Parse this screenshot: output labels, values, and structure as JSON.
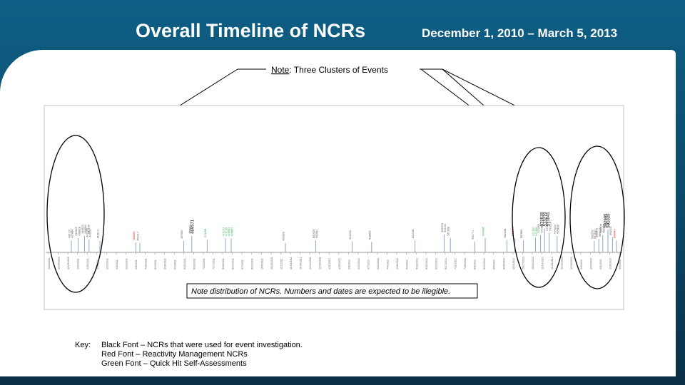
{
  "header": {
    "title": "Overall Timeline of NCRs",
    "date_range": "December 1, 2010 – March 5, 2013"
  },
  "note": {
    "prefix": "Note",
    "text": ":  Three Clusters of Events"
  },
  "illegible_note": "Note distribution of NCRs. Numbers and dates are expected to be illegible.",
  "key": {
    "label": "Key:",
    "lines": [
      "Black Font – NCRs that were used for event investigation.",
      "Red Font – Reactivity Management NCRs",
      "Green Font – Quick Hit Self-Assessments"
    ]
  },
  "colors": {
    "black_ncr": "#555555",
    "red_ncr": "#e02020",
    "green_ncr": "#2fae4a",
    "marker": "#8aa6c6"
  },
  "chart_data": {
    "type": "timeline",
    "x_domain": [
      0,
      100
    ],
    "ticks": [
      "12/1/2010",
      "12/15/2010",
      "12/29/2010",
      "1/12/2011",
      "1/26/2011",
      "2/9/2011",
      "2/23/2011",
      "3/9/2011",
      "3/23/2011",
      "4/6/2011",
      "4/20/2011",
      "5/4/2011",
      "5/18/2011",
      "6/1/2011",
      "6/15/2011",
      "6/29/2011",
      "7/13/2011",
      "7/27/2011",
      "8/10/2011",
      "8/24/2011",
      "9/7/2011",
      "9/21/2011",
      "10/5/2011",
      "10/19/2011",
      "11/2/2011",
      "11/16/2011",
      "11/30/2011",
      "12/14/2011",
      "12/28/2011",
      "1/11/2012",
      "1/25/2012",
      "2/8/2012",
      "2/22/2012",
      "3/7/2012",
      "3/21/2012",
      "4/4/2012",
      "4/18/2012",
      "5/2/2012",
      "5/16/2012",
      "5/30/2012",
      "6/13/2012",
      "6/27/2012",
      "7/11/2012",
      "7/25/2012",
      "8/8/2012",
      "8/22/2012",
      "9/5/2012",
      "9/19/2012",
      "10/3/2012",
      "10/17/2012",
      "10/31/2012",
      "11/14/2012",
      "11/28/2012",
      "12/12/2012",
      "12/26/2012",
      "1/9/2013",
      "1/23/2013",
      "2/6/2013",
      "2/20/2013",
      "3/6/2013"
    ],
    "events": [
      {
        "x": 4.0,
        "h": 48,
        "color": "black",
        "labels": [
          "439110",
          "437886"
        ]
      },
      {
        "x": 5.2,
        "h": 58,
        "color": "black",
        "labels": [
          "440629",
          "438828"
        ]
      },
      {
        "x": 6.3,
        "h": 66,
        "color": "black",
        "labels": [
          "440623",
          "439654",
          "441739"
        ]
      },
      {
        "x": 7.1,
        "h": 52,
        "color": "black",
        "labels": [
          "441265",
          "441817"
        ]
      },
      {
        "x": 9.0,
        "h": 46,
        "color": "black",
        "labels": [
          "444513"
        ]
      },
      {
        "x": 15.3,
        "h": 40,
        "color": "red",
        "labels": [
          "453081"
        ]
      },
      {
        "x": 16.0,
        "h": 38,
        "color": "black",
        "labels": [
          "454217"
        ]
      },
      {
        "x": 23.7,
        "h": 46,
        "color": "black",
        "labels": [
          "467587"
        ]
      },
      {
        "x": 25.1,
        "h": 66,
        "color": "black",
        "labels": [
          "469882",
          "469571"
        ]
      },
      {
        "x": 27.8,
        "h": 50,
        "color": "green",
        "labels": [
          "474208"
        ]
      },
      {
        "x": 31.0,
        "h": 56,
        "color": "green",
        "labels": [
          "479153",
          "476130"
        ]
      },
      {
        "x": 32.0,
        "h": 56,
        "color": "green",
        "labels": [
          "478963",
          "479601"
        ]
      },
      {
        "x": 41.5,
        "h": 38,
        "color": "black",
        "labels": [
          "492820"
        ]
      },
      {
        "x": 46.8,
        "h": 48,
        "color": "black",
        "labels": [
          "501929",
          "502861"
        ]
      },
      {
        "x": 53.2,
        "h": 44,
        "color": "black",
        "labels": [
          "511203"
        ]
      },
      {
        "x": 56.6,
        "h": 42,
        "color": "black",
        "labels": [
          "518963"
        ]
      },
      {
        "x": 64.2,
        "h": 48,
        "color": "black",
        "labels": [
          "531108"
        ]
      },
      {
        "x": 69.3,
        "h": 72,
        "color": "black",
        "labels": [
          "541073",
          "541191"
        ]
      },
      {
        "x": 70.4,
        "h": 58,
        "color": "black",
        "labels": [
          "541838"
        ]
      },
      {
        "x": 74.7,
        "h": 44,
        "color": "black",
        "labels": [
          "551771"
        ]
      },
      {
        "x": 76.5,
        "h": 58,
        "color": "green",
        "labels": [
          "554685"
        ]
      },
      {
        "x": 80.3,
        "h": 50,
        "color": "black",
        "labels": [
          "562228"
        ]
      },
      {
        "x": 81.7,
        "h": 58,
        "color": "red",
        "labels": [
          "563214"
        ]
      },
      {
        "x": 83.2,
        "h": 48,
        "color": "black",
        "labels": [
          "567882"
        ]
      },
      {
        "x": 85.3,
        "h": 58,
        "color": "green",
        "labels": [
          "571307",
          "571592"
        ]
      },
      {
        "x": 86.2,
        "h": 70,
        "color": "black",
        "labels": [
          "573493",
          "572886"
        ]
      },
      {
        "x": 86.9,
        "h": 96,
        "color": "black",
        "labels": [
          "572835",
          "573270",
          "573041"
        ]
      },
      {
        "x": 87.7,
        "h": 78,
        "color": "black",
        "labels": [
          "573440",
          "573126"
        ]
      },
      {
        "x": 89.1,
        "h": 66,
        "color": "black",
        "labels": [
          "575998",
          "575495"
        ]
      },
      {
        "x": 95.6,
        "h": 46,
        "color": "black",
        "labels": [
          "588250",
          "587430"
        ]
      },
      {
        "x": 96.4,
        "h": 54,
        "color": "black",
        "labels": [
          "588441",
          "589576"
        ]
      },
      {
        "x": 97.1,
        "h": 70,
        "color": "black",
        "labels": [
          "589576",
          "592995"
        ]
      },
      {
        "x": 98.0,
        "h": 90,
        "color": "black",
        "labels": [
          "592995",
          "591020"
        ]
      },
      {
        "x": 98.8,
        "h": 60,
        "color": "black",
        "labels": [
          "593201"
        ]
      },
      {
        "x": 99.5,
        "h": 48,
        "color": "red",
        "labels": [
          "593843"
        ]
      }
    ]
  }
}
